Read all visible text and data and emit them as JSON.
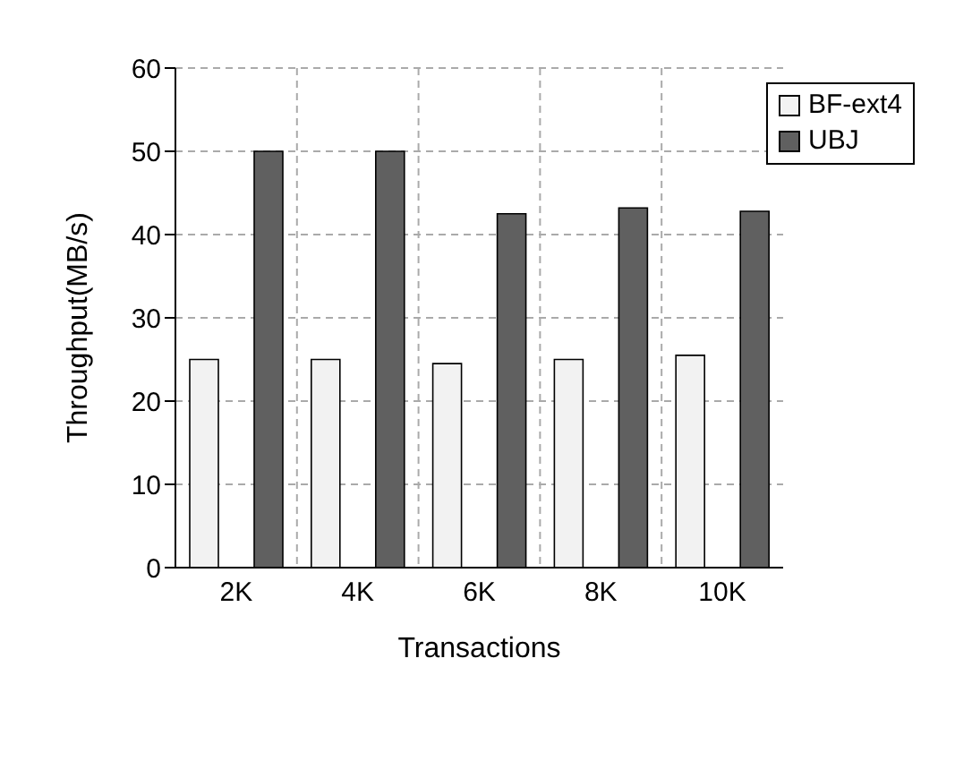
{
  "chart_data": {
    "type": "bar",
    "xlabel": "Transactions",
    "ylabel": "Throughput(MB/s)",
    "categories": [
      "2K",
      "4K",
      "6K",
      "8K",
      "10K"
    ],
    "series": [
      {
        "name": "BF-ext4",
        "color": "#f2f2f2",
        "values": [
          25,
          25,
          24.5,
          25,
          25.5
        ]
      },
      {
        "name": "UBJ",
        "color": "#606060",
        "values": [
          50,
          50,
          42.5,
          43.2,
          42.8
        ]
      }
    ],
    "ylim": [
      0,
      60
    ],
    "yticks": [
      0,
      10,
      20,
      30,
      40,
      50,
      60
    ],
    "grid": true,
    "legend": "top right"
  }
}
